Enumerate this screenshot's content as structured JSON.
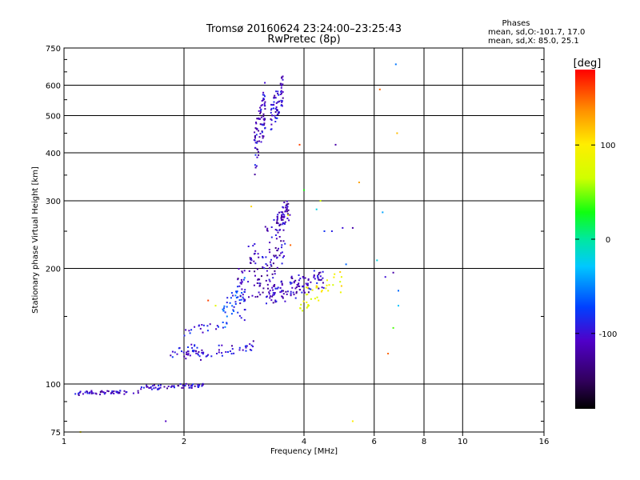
{
  "chart_data": {
    "type": "scatter",
    "title": "Tromsø 20160624 23:24:00–23:25:43",
    "subtitle": "RwPretec (8p)",
    "xlabel": "Frequency [MHz]",
    "ylabel": "Stationary phase Virtual Height [km]",
    "x_scale": "log",
    "y_scale": "log",
    "xlim": [
      1,
      16
    ],
    "ylim": [
      75,
      750
    ],
    "x_ticks": [
      1,
      2,
      4,
      6,
      8,
      10,
      16
    ],
    "x_tick_labels": [
      "1",
      "2",
      "4",
      "6",
      "8",
      "10",
      "16"
    ],
    "y_ticks": [
      75,
      100,
      200,
      300,
      400,
      500,
      600,
      750
    ],
    "y_tick_labels": [
      "75",
      "100",
      "200",
      "300",
      "400",
      "500",
      "600",
      "750"
    ],
    "grid": true,
    "stats": {
      "heading": "Phases",
      "line_o": "mean, sd,O:-101.7, 17.0",
      "line_x": "mean, sd,X:  85.0, 25.1"
    },
    "colorbar": {
      "label": "[deg]",
      "range": [
        -180,
        180
      ],
      "tick_values": [
        100,
        0,
        -100
      ],
      "tick_labels": [
        "100",
        "0",
        "-100"
      ]
    },
    "series": [
      {
        "traces": [
          {
            "x0": 1.05,
            "x1": 1.55,
            "y0": 94,
            "y1": 96,
            "n": 55,
            "phase": -110,
            "spread": 0.02
          },
          {
            "x0": 1.55,
            "x1": 2.25,
            "y0": 97,
            "y1": 100,
            "n": 60,
            "phase": -105,
            "spread": 0.02
          },
          {
            "x0": 1.85,
            "x1": 2.2,
            "y0": 117,
            "y1": 128,
            "n": 25,
            "phase": -100,
            "spread": 0.025
          },
          {
            "x0": 2.0,
            "x1": 3.0,
            "y0": 115,
            "y1": 128,
            "n": 50,
            "phase": -100,
            "spread": 0.03
          },
          {
            "x0": 2.0,
            "x1": 2.45,
            "y0": 135,
            "y1": 145,
            "n": 18,
            "phase": -90,
            "spread": 0.03
          },
          {
            "x0": 2.5,
            "x1": 2.85,
            "y0": 140,
            "y1": 190,
            "n": 45,
            "phase": -75,
            "spread": 0.06
          },
          {
            "x0": 2.7,
            "x1": 3.6,
            "y0": 140,
            "y1": 300,
            "n": 130,
            "phase": -110,
            "spread": 0.06
          },
          {
            "x0": 3.2,
            "x1": 4.5,
            "y0": 160,
            "y1": 200,
            "n": 120,
            "phase": -108,
            "spread": 0.035
          },
          {
            "x0": 3.4,
            "x1": 3.7,
            "y0": 240,
            "y1": 305,
            "n": 50,
            "phase": -115,
            "spread": 0.04
          },
          {
            "x0": 3.0,
            "x1": 3.2,
            "y0": 340,
            "y1": 620,
            "n": 80,
            "phase": -108,
            "spread": 0.05
          },
          {
            "x0": 3.3,
            "x1": 3.55,
            "y0": 440,
            "y1": 640,
            "n": 70,
            "phase": -105,
            "spread": 0.05
          },
          {
            "x0": 3.9,
            "x1": 5.0,
            "y0": 150,
            "y1": 200,
            "n": 35,
            "phase": 90,
            "spread": 0.07
          }
        ],
        "scatter_points": [
          [
            6.8,
            680,
            -55
          ],
          [
            6.2,
            585,
            150
          ],
          [
            6.85,
            450,
            120
          ],
          [
            4.8,
            420,
            -120
          ],
          [
            3.9,
            420,
            160
          ],
          [
            4.4,
            300,
            70
          ],
          [
            5.5,
            335,
            130
          ],
          [
            6.3,
            280,
            -40
          ],
          [
            6.4,
            190,
            -100
          ],
          [
            6.7,
            195,
            -120
          ],
          [
            6.9,
            175,
            -60
          ],
          [
            6.5,
            120,
            150
          ],
          [
            6.9,
            160,
            -30
          ],
          [
            6.7,
            140,
            40
          ],
          [
            5.3,
            80,
            100
          ],
          [
            1.8,
            80,
            -110
          ],
          [
            1.1,
            75,
            100
          ],
          [
            2.3,
            165,
            160
          ],
          [
            2.95,
            290,
            110
          ],
          [
            4.5,
            250,
            -80
          ],
          [
            4.7,
            250,
            -90
          ],
          [
            5.0,
            255,
            -100
          ],
          [
            5.3,
            255,
            -120
          ],
          [
            4.3,
            180,
            120
          ],
          [
            4.6,
            175,
            90
          ],
          [
            6.1,
            210,
            -20
          ],
          [
            5.1,
            205,
            -60
          ],
          [
            2.4,
            160,
            80
          ],
          [
            3.7,
            230,
            150
          ],
          [
            4.0,
            320,
            30
          ],
          [
            4.3,
            285,
            -20
          ],
          [
            3.65,
            275,
            80
          ]
        ]
      }
    ]
  }
}
